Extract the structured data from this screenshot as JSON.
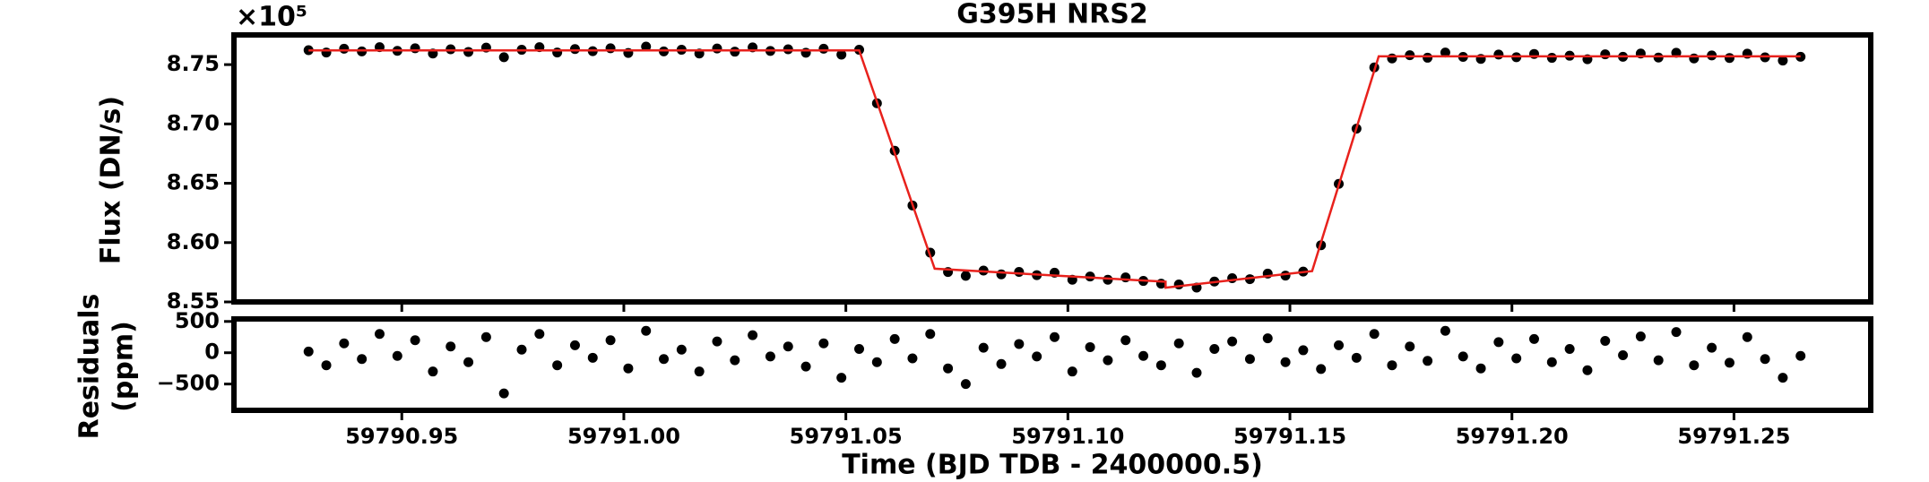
{
  "chart_data": [
    {
      "type": "scatter",
      "title": "G395H NRS2",
      "ylabel": "Flux (DN/s)",
      "offset_text": "×10⁵",
      "xlim": [
        59790.9122,
        59791.2808
      ],
      "ylim": [
        8.55,
        8.775
      ],
      "yticks": [
        8.55,
        {
          "value": 8.6,
          "label": "8.60"
        },
        8.65,
        {
          "value": 8.7,
          "label": "8.70"
        },
        8.75
      ],
      "x": [
        59790.929,
        59790.933,
        59790.937,
        59790.941,
        59790.945,
        59790.949,
        59790.953,
        59790.957,
        59790.961,
        59790.965,
        59790.969,
        59790.973,
        59790.977,
        59790.981,
        59790.985,
        59790.989,
        59790.993,
        59790.997,
        59791.001,
        59791.005,
        59791.009,
        59791.013,
        59791.017,
        59791.021,
        59791.025,
        59791.029,
        59791.033,
        59791.037,
        59791.041,
        59791.045,
        59791.049,
        59791.053,
        59791.057,
        59791.061,
        59791.065,
        59791.069,
        59791.073,
        59791.077,
        59791.081,
        59791.085,
        59791.089,
        59791.093,
        59791.097,
        59791.101,
        59791.105,
        59791.109,
        59791.113,
        59791.117,
        59791.121,
        59791.125,
        59791.129,
        59791.133,
        59791.137,
        59791.141,
        59791.145,
        59791.149,
        59791.153,
        59791.157,
        59791.161,
        59791.165,
        59791.169,
        59791.173,
        59791.177,
        59791.181,
        59791.185,
        59791.189,
        59791.193,
        59791.197,
        59791.201,
        59791.205,
        59791.209,
        59791.213,
        59791.217,
        59791.221,
        59791.225,
        59791.229,
        59791.233,
        59791.237,
        59791.241,
        59791.245,
        59791.249,
        59791.253,
        59791.257,
        59791.261,
        59791.265
      ],
      "series": [
        {
          "color": "#000000",
          "marker": "o",
          "values": [
            8.7622,
            8.7602,
            8.7634,
            8.7611,
            8.7647,
            8.7616,
            8.7638,
            8.7593,
            8.7629,
            8.7607,
            8.7643,
            8.7562,
            8.7625,
            8.7647,
            8.7602,
            8.7631,
            8.7613,
            8.7638,
            8.7598,
            8.7652,
            8.7611,
            8.7625,
            8.7593,
            8.7636,
            8.7609,
            8.7645,
            8.7615,
            8.7629,
            8.76,
            8.7634,
            8.7584,
            8.7625,
            8.7174,
            8.6774,
            8.6313,
            8.5915,
            8.5752,
            8.572,
            8.5764,
            8.5732,
            8.5753,
            8.5726,
            8.5746,
            8.5687,
            8.5714,
            8.5687,
            8.5707,
            8.5677,
            8.5654,
            8.5647,
            8.5621,
            8.5672,
            8.57,
            8.5692,
            8.5739,
            8.5722,
            8.5756,
            8.5978,
            8.6495,
            8.696,
            8.7476,
            8.7552,
            8.7579,
            8.7558,
            8.7602,
            8.7565,
            8.7548,
            8.7585,
            8.7562,
            8.759,
            8.7557,
            8.7575,
            8.7545,
            8.7587,
            8.7566,
            8.7593,
            8.7559,
            8.76,
            8.7552,
            8.7577,
            8.7556,
            8.7592,
            8.7561,
            8.7534,
            8.7566
          ]
        },
        {
          "color": "#e8211c",
          "linestyle": "-",
          "x": [
            59790.929,
            59791.053,
            59791.07,
            59791.122,
            59791.122,
            59791.155,
            59791.17,
            59791.265
          ],
          "values": [
            8.762,
            8.762,
            8.578,
            8.567,
            8.562,
            8.576,
            8.757,
            8.757
          ]
        }
      ]
    },
    {
      "type": "scatter",
      "ylabel": [
        "Residuals",
        "(ppm)"
      ],
      "xlabel": "Time (BJD TDB - 2400000.5)",
      "xlim": [
        59790.9122,
        59791.2808
      ],
      "ylim": [
        -920,
        540
      ],
      "xticks": [
        59790.95,
        {
          "value": 59791,
          "label": "59791.00"
        },
        59791.05,
        {
          "value": 59791.1,
          "label": "59791.10"
        },
        59791.15,
        {
          "value": 59791.2,
          "label": "59791.20"
        },
        59791.25
      ],
      "yticks": [
        {
          "value": -500,
          "label": "−500"
        },
        0,
        500
      ],
      "x": [
        59790.929,
        59790.933,
        59790.937,
        59790.941,
        59790.945,
        59790.949,
        59790.953,
        59790.957,
        59790.961,
        59790.965,
        59790.969,
        59790.973,
        59790.977,
        59790.981,
        59790.985,
        59790.989,
        59790.993,
        59790.997,
        59791.001,
        59791.005,
        59791.009,
        59791.013,
        59791.017,
        59791.021,
        59791.025,
        59791.029,
        59791.033,
        59791.037,
        59791.041,
        59791.045,
        59791.049,
        59791.053,
        59791.057,
        59791.061,
        59791.065,
        59791.069,
        59791.073,
        59791.077,
        59791.081,
        59791.085,
        59791.089,
        59791.093,
        59791.097,
        59791.101,
        59791.105,
        59791.109,
        59791.113,
        59791.117,
        59791.121,
        59791.125,
        59791.129,
        59791.133,
        59791.137,
        59791.141,
        59791.145,
        59791.149,
        59791.153,
        59791.157,
        59791.161,
        59791.165,
        59791.169,
        59791.173,
        59791.177,
        59791.181,
        59791.185,
        59791.189,
        59791.193,
        59791.197,
        59791.201,
        59791.205,
        59791.209,
        59791.213,
        59791.217,
        59791.221,
        59791.225,
        59791.229,
        59791.233,
        59791.237,
        59791.241,
        59791.245,
        59791.249,
        59791.253,
        59791.257,
        59791.261,
        59791.265
      ],
      "series": [
        {
          "color": "#000000",
          "marker": "o",
          "values": [
            20,
            -200,
            150,
            -100,
            300,
            -50,
            200,
            -300,
            100,
            -150,
            250,
            -650,
            50,
            300,
            -200,
            120,
            -80,
            200,
            -250,
            350,
            -100,
            50,
            -300,
            180,
            -120,
            280,
            -60,
            100,
            -220,
            150,
            -400,
            60,
            -150,
            220,
            -90,
            300,
            -250,
            -500,
            80,
            -180,
            140,
            -60,
            250,
            -300,
            90,
            -120,
            200,
            -50,
            -200,
            150,
            -320,
            60,
            180,
            -100,
            230,
            -150,
            40,
            -260,
            120,
            -80,
            300,
            -200,
            100,
            -130,
            350,
            -60,
            -250,
            170,
            -90,
            220,
            -150,
            60,
            -280,
            190,
            -40,
            260,
            -120,
            330,
            -200,
            80,
            -160,
            250,
            -100,
            -400,
            -50
          ]
        }
      ]
    }
  ]
}
